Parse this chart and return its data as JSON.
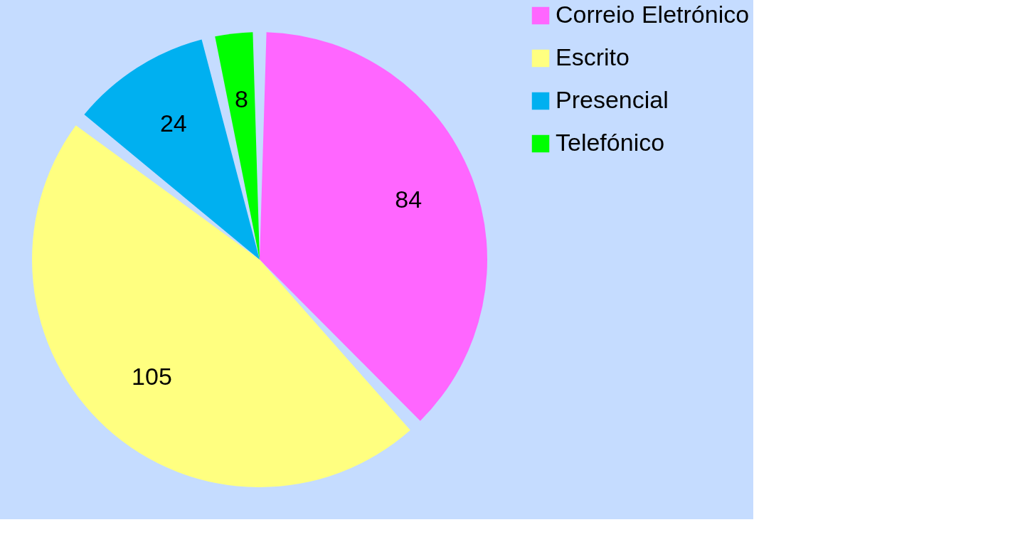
{
  "chart_data": {
    "type": "pie",
    "categories": [
      "Correio Eletrónico",
      "Escrito",
      "Presencial",
      "Telefónico"
    ],
    "values": [
      84,
      105,
      24,
      8
    ],
    "colors": [
      "#ff66ff",
      "#ffff80",
      "#00b0f0",
      "#00ff00"
    ],
    "data_labels": true,
    "legend": "right"
  }
}
